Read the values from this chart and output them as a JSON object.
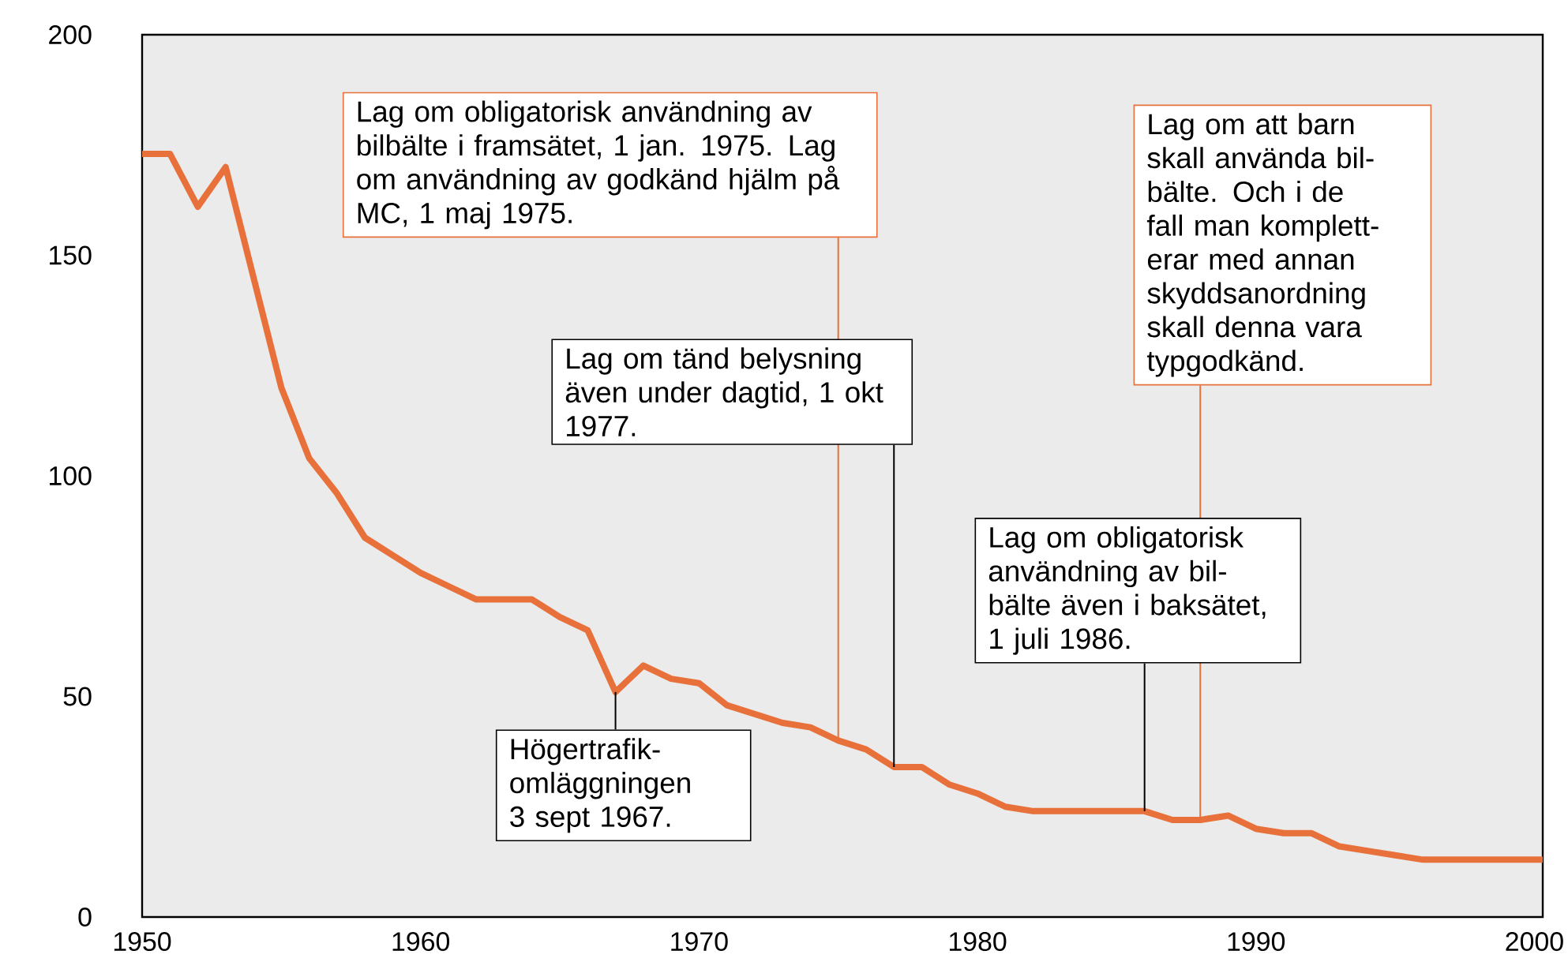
{
  "chart_data": {
    "type": "line",
    "line_style": "solid",
    "marker": "none",
    "xlim": [
      1950,
      2000.3
    ],
    "ylim": [
      0,
      200
    ],
    "xticks": [
      1950,
      1960,
      1970,
      1980,
      1990,
      2000
    ],
    "yticks": [
      0,
      50,
      100,
      150,
      200
    ],
    "series": [
      {
        "color": "#e8703a",
        "x": [
          1950,
          1951,
          1952,
          1953,
          1954,
          1955,
          1956,
          1957,
          1958,
          1959,
          1960,
          1961,
          1962,
          1963,
          1964,
          1965,
          1966,
          1967,
          1968,
          1969,
          1970,
          1971,
          1972,
          1973,
          1974,
          1975,
          1976,
          1977,
          1978,
          1979,
          1980,
          1981,
          1982,
          1983,
          1984,
          1985,
          1986,
          1987,
          1988,
          1989,
          1990,
          1991,
          1992,
          1993,
          1994,
          1995,
          1996,
          1997,
          1998,
          1999,
          2000.3
        ],
        "values": [
          173,
          173,
          161,
          170,
          145,
          120,
          104,
          96,
          86,
          82,
          78,
          75,
          72,
          72,
          72,
          68,
          65,
          51,
          57,
          54,
          53,
          48,
          46,
          44,
          43,
          40,
          38,
          34,
          34,
          30,
          28,
          25,
          24,
          24,
          24,
          24,
          24,
          22,
          22,
          23,
          20,
          19,
          19,
          16,
          15,
          14,
          13,
          13,
          13,
          13,
          13
        ]
      }
    ],
    "annotations": [
      {
        "text": "Lag om obligatorisk användning av bilbälte i framsätet, 1 jan. 1975. Lag om användning av godkänd hjälm på MC, 1 maj 1975.",
        "x": 1975,
        "y": 40
      },
      {
        "text": "Lag om tänd belysning även under dagtid, 1 okt 1977.",
        "x": 1977,
        "y": 34
      },
      {
        "text": "Högertrafik-omläggningen 3 sept 1967.",
        "x": 1967,
        "y": 51
      },
      {
        "text": "Lag om obligatorisk användning av bil-bälte även i baksätet, 1 juli 1986.",
        "x": 1986,
        "y": 24
      },
      {
        "text": "Lag om att barn skall använda bil-bälte. Och i de fall man komplett-erar med annan skyddsanordning skall denna vara typgodkänd.",
        "x": 1988,
        "y": 22
      }
    ]
  }
}
